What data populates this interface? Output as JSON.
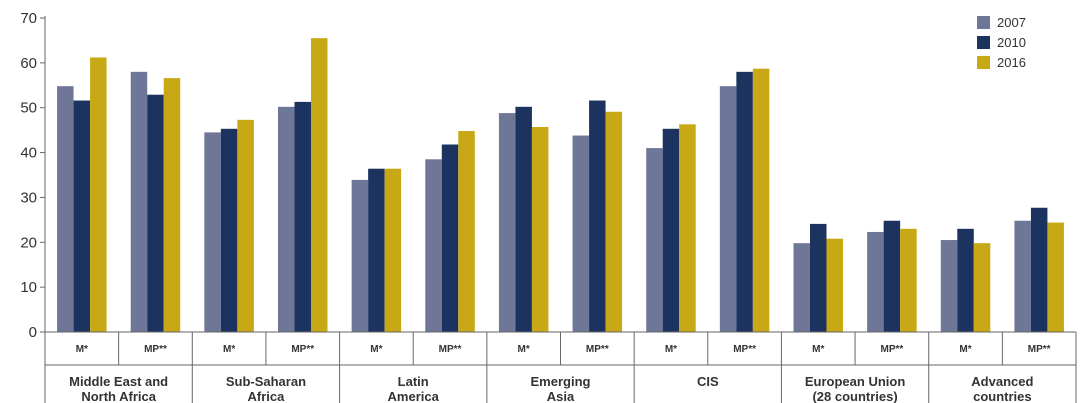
{
  "chart_data": {
    "type": "bar",
    "ylim": [
      0,
      70
    ],
    "yticks": [
      0,
      10,
      20,
      30,
      40,
      50,
      60,
      70
    ],
    "grid": false,
    "legend_position": "top-right",
    "groups": [
      {
        "line1": "Middle East and",
        "line2": "North Africa"
      },
      {
        "line1": "Sub-Saharan",
        "line2": "Africa"
      },
      {
        "line1": "Latin",
        "line2": "America"
      },
      {
        "line1": "Emerging",
        "line2": "Asia"
      },
      {
        "line1": "CIS",
        "line2": ""
      },
      {
        "line1": "European Union",
        "line2": "(28 countries)"
      },
      {
        "line1": "Advanced",
        "line2": "countries"
      }
    ],
    "subcategories": [
      "M*",
      "MP**"
    ],
    "categories": [
      "Middle East and North Africa M*",
      "Middle East and North Africa MP**",
      "Sub-Saharan Africa M*",
      "Sub-Saharan Africa MP**",
      "Latin America M*",
      "Latin America MP**",
      "Emerging Asia M*",
      "Emerging Asia MP**",
      "CIS M*",
      "CIS MP**",
      "European Union (28 countries) M*",
      "European Union (28 countries) MP**",
      "Advanced countries M*",
      "Advanced countries MP**"
    ],
    "series": [
      {
        "name": "2007",
        "color": "#6f7799",
        "values": [
          54.8,
          58.0,
          44.5,
          50.2,
          33.9,
          38.5,
          48.8,
          43.8,
          41.0,
          54.8,
          19.8,
          22.3,
          20.5,
          24.8
        ]
      },
      {
        "name": "2010",
        "color": "#1c3360",
        "values": [
          51.6,
          52.9,
          45.3,
          51.3,
          36.4,
          41.8,
          50.2,
          51.6,
          45.3,
          58.0,
          24.1,
          24.8,
          23.0,
          27.7
        ]
      },
      {
        "name": "2016",
        "color": "#c9a815",
        "values": [
          61.2,
          56.6,
          47.3,
          65.5,
          36.4,
          44.8,
          45.7,
          49.1,
          46.3,
          58.7,
          20.8,
          23.0,
          19.8,
          24.4
        ]
      }
    ]
  }
}
